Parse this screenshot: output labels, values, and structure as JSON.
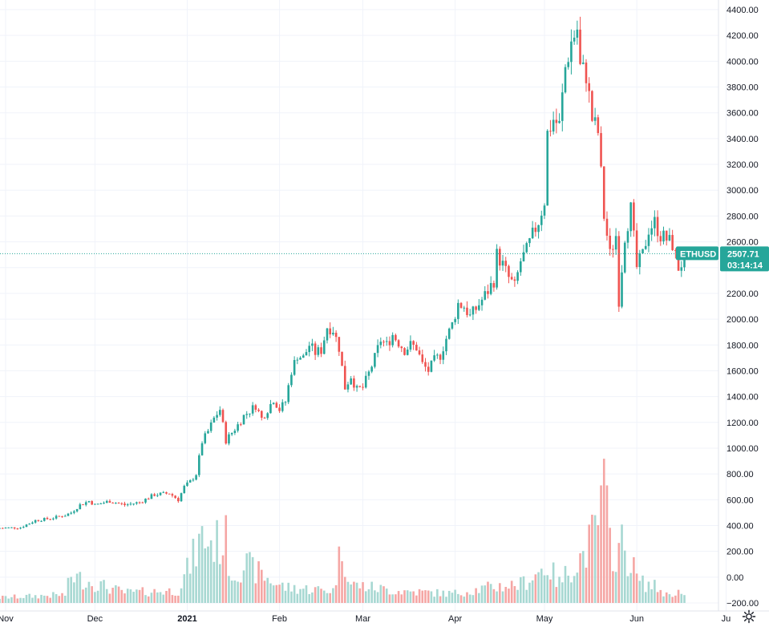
{
  "symbol": "ETHUSD",
  "colors": {
    "up": "#26a69a",
    "down": "#ef5350",
    "up_vol": "#a7d8d2",
    "down_vol": "#f5a6a4",
    "grid": "#f0f3fa",
    "tag": "#26a69a"
  },
  "price_label": {
    "symbol": "ETHUSD",
    "price": "2507.71",
    "countdown": "03:14:14"
  },
  "chart_data": {
    "type": "candlestick",
    "y_ticks": [
      "4400.00",
      "4200.00",
      "4000.00",
      "3800.00",
      "3600.00",
      "3400.00",
      "3200.00",
      "3000.00",
      "2800.00",
      "2600.00",
      "2400.00",
      "2200.00",
      "2000.00",
      "1800.00",
      "1600.00",
      "1400.00",
      "1200.00",
      "1000.00",
      "800.00",
      "600.00",
      "400.00",
      "200.00",
      "0.00",
      "−200.00"
    ],
    "x_ticks": [
      {
        "label": "Nov",
        "day": 0,
        "bold": false
      },
      {
        "label": "Dec",
        "day": 30,
        "bold": false
      },
      {
        "label": "2021",
        "day": 61,
        "bold": true
      },
      {
        "label": "Feb",
        "day": 92,
        "bold": false
      },
      {
        "label": "Mar",
        "day": 120,
        "bold": false
      },
      {
        "label": "Apr",
        "day": 151,
        "bold": false
      },
      {
        "label": "May",
        "day": 181,
        "bold": false
      },
      {
        "label": "Jun",
        "day": 212,
        "bold": false
      },
      {
        "label": "Ju",
        "day": 242,
        "bold": false
      }
    ],
    "ylim": [
      -200,
      4400
    ],
    "last_price": 2507.71,
    "close_path": [
      [
        -3,
        380
      ],
      [
        5,
        385
      ],
      [
        10,
        440
      ],
      [
        15,
        455
      ],
      [
        20,
        480
      ],
      [
        22,
        500
      ],
      [
        25,
        560
      ],
      [
        28,
        590
      ],
      [
        30,
        560
      ],
      [
        35,
        590
      ],
      [
        40,
        560
      ],
      [
        45,
        580
      ],
      [
        50,
        640
      ],
      [
        55,
        650
      ],
      [
        58,
        600
      ],
      [
        60,
        700
      ],
      [
        62,
        740
      ],
      [
        64,
        800
      ],
      [
        66,
        1050
      ],
      [
        68,
        1130
      ],
      [
        70,
        1230
      ],
      [
        72,
        1300
      ],
      [
        74,
        1060
      ],
      [
        76,
        1120
      ],
      [
        78,
        1180
      ],
      [
        80,
        1250
      ],
      [
        82,
        1290
      ],
      [
        84,
        1330
      ],
      [
        86,
        1230
      ],
      [
        88,
        1300
      ],
      [
        90,
        1380
      ],
      [
        92,
        1300
      ],
      [
        94,
        1360
      ],
      [
        96,
        1600
      ],
      [
        98,
        1720
      ],
      [
        100,
        1700
      ],
      [
        102,
        1800
      ],
      [
        104,
        1740
      ],
      [
        106,
        1760
      ],
      [
        108,
        1940
      ],
      [
        110,
        1920
      ],
      [
        112,
        1780
      ],
      [
        114,
        1470
      ],
      [
        116,
        1560
      ],
      [
        118,
        1450
      ],
      [
        120,
        1470
      ],
      [
        122,
        1580
      ],
      [
        124,
        1700
      ],
      [
        126,
        1840
      ],
      [
        128,
        1800
      ],
      [
        130,
        1880
      ],
      [
        132,
        1820
      ],
      [
        134,
        1760
      ],
      [
        136,
        1800
      ],
      [
        138,
        1780
      ],
      [
        140,
        1650
      ],
      [
        142,
        1600
      ],
      [
        144,
        1680
      ],
      [
        146,
        1720
      ],
      [
        148,
        1850
      ],
      [
        150,
        1960
      ],
      [
        152,
        2120
      ],
      [
        154,
        2100
      ],
      [
        156,
        2020
      ],
      [
        158,
        2080
      ],
      [
        160,
        2150
      ],
      [
        162,
        2220
      ],
      [
        164,
        2300
      ],
      [
        165,
        2500
      ],
      [
        167,
        2420
      ],
      [
        169,
        2320
      ],
      [
        171,
        2250
      ],
      [
        173,
        2450
      ],
      [
        175,
        2530
      ],
      [
        177,
        2650
      ],
      [
        179,
        2760
      ],
      [
        181,
        2920
      ],
      [
        182,
        3440
      ],
      [
        184,
        3550
      ],
      [
        186,
        3500
      ],
      [
        188,
        3950
      ],
      [
        190,
        4150
      ],
      [
        192,
        4250
      ],
      [
        193,
        3950
      ],
      [
        195,
        3900
      ],
      [
        197,
        3550
      ],
      [
        199,
        3450
      ],
      [
        201,
        2800
      ],
      [
        203,
        2500
      ],
      [
        205,
        2650
      ],
      [
        206,
        2150
      ],
      [
        208,
        2650
      ],
      [
        210,
        2850
      ],
      [
        212,
        2400
      ],
      [
        214,
        2500
      ],
      [
        216,
        2700
      ],
      [
        218,
        2750
      ],
      [
        220,
        2650
      ],
      [
        222,
        2620
      ],
      [
        224,
        2580
      ],
      [
        226,
        2400
      ],
      [
        228,
        2460
      ],
      [
        229,
        2507.71
      ]
    ],
    "volume_profile": [
      [
        -3,
        50
      ],
      [
        20,
        80
      ],
      [
        22,
        260
      ],
      [
        40,
        100
      ],
      [
        58,
        120
      ],
      [
        62,
        380
      ],
      [
        66,
        630
      ],
      [
        70,
        580
      ],
      [
        74,
        600
      ],
      [
        76,
        260
      ],
      [
        80,
        380
      ],
      [
        90,
        200
      ],
      [
        94,
        150
      ],
      [
        110,
        120
      ],
      [
        113,
        560
      ],
      [
        116,
        180
      ],
      [
        130,
        120
      ],
      [
        150,
        90
      ],
      [
        165,
        160
      ],
      [
        173,
        180
      ],
      [
        180,
        320
      ],
      [
        182,
        360
      ],
      [
        186,
        190
      ],
      [
        190,
        350
      ],
      [
        194,
        460
      ],
      [
        198,
        680
      ],
      [
        201,
        1060
      ],
      [
        203,
        590
      ],
      [
        205,
        480
      ],
      [
        207,
        560
      ],
      [
        210,
        390
      ],
      [
        213,
        200
      ],
      [
        218,
        160
      ],
      [
        222,
        80
      ],
      [
        226,
        110
      ],
      [
        229,
        30
      ]
    ]
  }
}
